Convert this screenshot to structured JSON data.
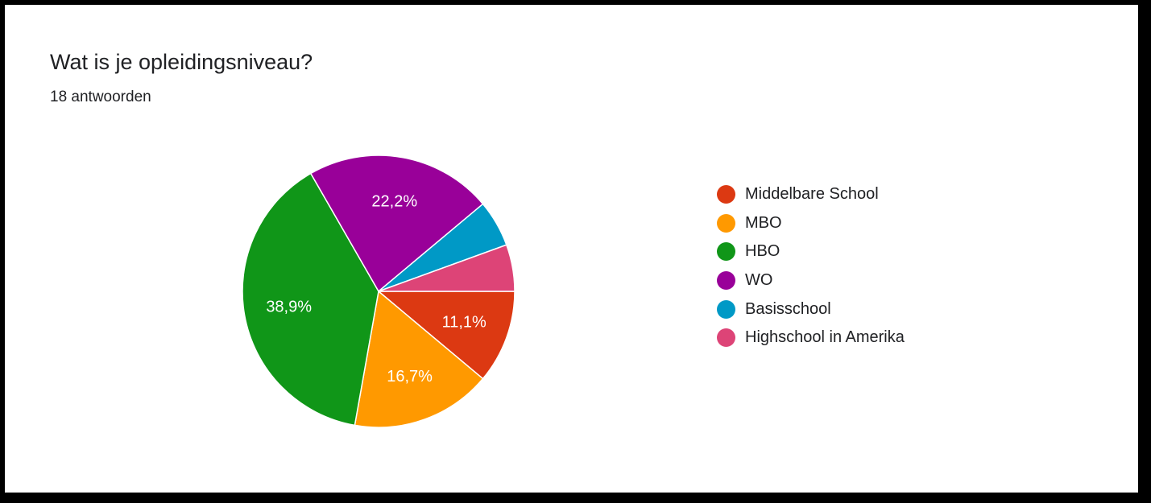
{
  "header": {
    "title": "Wat is je opleidingsniveau?",
    "subtitle": "18 antwoorden"
  },
  "chart_data": {
    "type": "pie",
    "title": "Wat is je opleidingsniveau?",
    "subtitle": "18 antwoorden",
    "legend_position": "right",
    "slices": [
      {
        "label": "Middelbare School",
        "value": 11.1,
        "display": "11,1%",
        "color": "#dc3912"
      },
      {
        "label": "MBO",
        "value": 16.7,
        "display": "16,7%",
        "color": "#ff9900"
      },
      {
        "label": "HBO",
        "value": 38.9,
        "display": "38,9%",
        "color": "#109618"
      },
      {
        "label": "WO",
        "value": 22.2,
        "display": "22,2%",
        "color": "#990099"
      },
      {
        "label": "Basisschool",
        "value": 5.55,
        "display": "",
        "color": "#0099c6"
      },
      {
        "label": "Highschool in Amerika",
        "value": 5.55,
        "display": "",
        "color": "#dd4477"
      }
    ]
  }
}
